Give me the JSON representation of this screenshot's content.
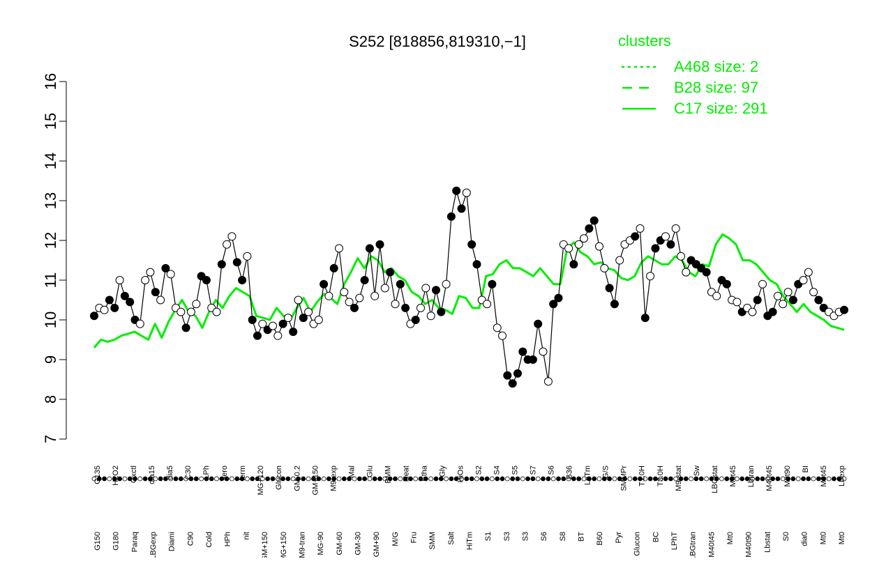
{
  "chart_data": {
    "type": "line",
    "title": "S252 [818856,819310,−1]",
    "xlabel": "",
    "ylabel": "",
    "ylim": [
      7,
      16
    ],
    "yticks": [
      7,
      8,
      9,
      10,
      11,
      12,
      13,
      14,
      15,
      16
    ],
    "grid": false,
    "legend": {
      "title": "clusters",
      "placement": "top-right",
      "entries": [
        {
          "label": "A468 size: 2",
          "style": "dotted"
        },
        {
          "label": "B28 size: 97",
          "style": "dashed"
        },
        {
          "label": "C17 size: 291",
          "style": "solid"
        }
      ]
    },
    "colors": {
      "cluster_line": "#00ee00",
      "axis": "#000000",
      "point_open": "#ffffff",
      "point_filled": "#000000"
    },
    "x_tick_labels_upper": [
      "G135",
      "H2O2",
      "Oxctl",
      "dia15",
      "dia5",
      "C30",
      "LPh",
      "aero",
      "ferm",
      "MG+120",
      "Glucon",
      "GM-0.2",
      "GM+150",
      "M9-exp",
      "Mal",
      "Glu",
      "BMM",
      "Heat",
      "Etha",
      "Gly",
      "HiOs",
      "S2",
      "S4",
      "S5",
      "S7",
      "S6",
      "B36",
      "LoTm",
      "G/S",
      "SMMPr",
      "T1.0H",
      "T3.0H",
      "M9-stat",
      "Sw",
      "LBGstat",
      "M0t45",
      "Lbtran",
      "M40t45",
      "M0t90",
      "BI",
      "M0t45",
      "Lbexp"
    ],
    "x_tick_labels_lower": [
      "G150",
      "G180",
      "Paraq",
      "LBGexp",
      "Diami",
      "C90",
      "Cold",
      "HPh",
      "nit",
      "GM+150",
      "MG+150",
      "M9-tran",
      "MG-90",
      "GM-60",
      "GM-30",
      "GM+90",
      "M/G",
      "Fru",
      "SMM",
      "Salt",
      "HiTm",
      "S1",
      "S3",
      "S3",
      "S6",
      "S8",
      "BT",
      "B60",
      "Pyr",
      "Glucon",
      "BC",
      "LPhT",
      "LBGtran",
      "M40t45",
      "Mt0",
      "M40t90",
      "Lbstat",
      "S0",
      "dia0",
      "Mt0",
      "Mt0"
    ],
    "series": [
      {
        "role": "cluster-mean",
        "values": [
          9.3,
          9.5,
          9.45,
          9.5,
          9.6,
          9.65,
          9.7,
          9.6,
          9.5,
          9.9,
          9.55,
          9.95,
          10.25,
          10.5,
          10.2,
          10.1,
          9.8,
          10.2,
          10.5,
          10.3,
          10.6,
          10.8,
          10.7,
          10.6,
          10.1,
          10.05,
          10.0,
          10.3,
          10.1,
          10.0,
          10.3,
          10.55,
          10.2,
          10.45,
          10.65,
          10.55,
          10.4,
          10.9,
          11.2,
          11.55,
          11.3,
          11.6,
          11.5,
          11.2,
          11.3,
          11.1,
          11.0,
          10.7,
          10.6,
          10.4,
          10.5,
          10.3,
          10.25,
          10.15,
          10.6,
          10.55,
          10.3,
          10.3,
          11.1,
          11.15,
          11.4,
          11.5,
          11.3,
          11.3,
          11.2,
          11.1,
          11.3,
          11.1,
          10.9,
          10.9,
          11.8,
          11.95,
          11.7,
          11.6,
          11.4,
          11.45,
          11.3,
          11.25,
          11.05,
          11.0,
          11.1,
          11.45,
          11.6,
          11.5,
          11.4,
          11.4,
          11.6,
          11.5,
          11.2,
          11.1,
          11.4,
          11.35,
          11.9,
          12.15,
          12.05,
          11.9,
          11.5,
          11.5,
          11.4,
          11.2,
          11.0,
          10.9,
          10.6,
          10.4,
          10.2,
          10.4,
          10.2,
          10.1,
          10.0,
          9.85,
          9.8,
          9.75
        ]
      },
      {
        "role": "gene-profile",
        "values": [
          10.1,
          10.3,
          10.25,
          10.5,
          10.3,
          11.0,
          10.6,
          10.45,
          10.0,
          9.9,
          11.0,
          11.2,
          10.7,
          10.5,
          11.3,
          11.15,
          10.3,
          10.2,
          9.8,
          10.2,
          10.4,
          11.1,
          11.0,
          10.3,
          10.2,
          11.4,
          11.9,
          12.1,
          11.45,
          11.0,
          11.6,
          10.0,
          9.6,
          9.9,
          9.75,
          9.85,
          9.6,
          9.9,
          10.05,
          9.7,
          10.5,
          10.05,
          10.2,
          9.9,
          10.0,
          10.9,
          10.6,
          11.3,
          11.8,
          10.7,
          10.45,
          10.3,
          10.55,
          11.0,
          11.8,
          10.6,
          11.9,
          10.8,
          11.2,
          10.4,
          10.9,
          10.3,
          9.9,
          10.0,
          10.3,
          10.8,
          10.1,
          10.75,
          10.2,
          10.9,
          12.6,
          13.25,
          12.8,
          13.2,
          11.9,
          11.4,
          10.5,
          10.4,
          10.9,
          9.8,
          9.6,
          8.6,
          8.4,
          8.65,
          9.2,
          9.0,
          9.0,
          9.9,
          9.2,
          8.45,
          10.4,
          10.55,
          11.9,
          11.8,
          11.4,
          11.9,
          12.05,
          12.3,
          12.5,
          11.85,
          11.3,
          10.8,
          10.4,
          11.5,
          11.9,
          12.0,
          12.1,
          12.3,
          10.05,
          11.1,
          11.8,
          12.0,
          12.1,
          11.9,
          12.3,
          11.6,
          11.2,
          11.5,
          11.4,
          11.3,
          11.2,
          10.7,
          10.6,
          11.0,
          10.9,
          10.5,
          10.45,
          10.2,
          10.3,
          10.2,
          10.5,
          10.9,
          10.1,
          10.2,
          10.6,
          10.4,
          10.7,
          10.5,
          10.9,
          11.0,
          11.2,
          10.7,
          10.5,
          10.3,
          10.2,
          10.1,
          10.2,
          10.25
        ]
      }
    ],
    "points": [
      {
        "x": 0,
        "y": 10.1,
        "filled": true
      },
      {
        "x": 1,
        "y": 10.3,
        "filled": false
      },
      {
        "x": 2,
        "y": 10.25,
        "filled": false
      },
      {
        "x": 3,
        "y": 10.5,
        "filled": true
      },
      {
        "x": 4,
        "y": 10.3,
        "filled": true
      },
      {
        "x": 5,
        "y": 11.0,
        "filled": false
      },
      {
        "x": 6,
        "y": 10.6,
        "filled": true
      },
      {
        "x": 7,
        "y": 10.45,
        "filled": true
      },
      {
        "x": 8,
        "y": 10.0,
        "filled": true
      },
      {
        "x": 9,
        "y": 9.9,
        "filled": false
      },
      {
        "x": 10,
        "y": 11.0,
        "filled": false
      },
      {
        "x": 11,
        "y": 11.2,
        "filled": false
      },
      {
        "x": 12,
        "y": 10.7,
        "filled": true
      },
      {
        "x": 13,
        "y": 10.5,
        "filled": false
      },
      {
        "x": 14,
        "y": 11.3,
        "filled": true
      },
      {
        "x": 15,
        "y": 11.15,
        "filled": false
      },
      {
        "x": 16,
        "y": 10.3,
        "filled": false
      },
      {
        "x": 17,
        "y": 10.2,
        "filled": false
      },
      {
        "x": 18,
        "y": 9.8,
        "filled": true
      },
      {
        "x": 19,
        "y": 10.2,
        "filled": false
      },
      {
        "x": 20,
        "y": 10.4,
        "filled": false
      },
      {
        "x": 21,
        "y": 11.1,
        "filled": true
      },
      {
        "x": 22,
        "y": 11.0,
        "filled": true
      },
      {
        "x": 23,
        "y": 10.3,
        "filled": false
      },
      {
        "x": 24,
        "y": 10.2,
        "filled": false
      },
      {
        "x": 25,
        "y": 11.4,
        "filled": true
      },
      {
        "x": 26,
        "y": 11.9,
        "filled": false
      },
      {
        "x": 27,
        "y": 12.1,
        "filled": false
      },
      {
        "x": 28,
        "y": 11.45,
        "filled": true
      },
      {
        "x": 29,
        "y": 11.0,
        "filled": true
      },
      {
        "x": 30,
        "y": 11.6,
        "filled": false
      },
      {
        "x": 31,
        "y": 10.0,
        "filled": true
      },
      {
        "x": 32,
        "y": 9.6,
        "filled": true
      },
      {
        "x": 33,
        "y": 9.9,
        "filled": false
      },
      {
        "x": 34,
        "y": 9.75,
        "filled": true
      },
      {
        "x": 35,
        "y": 9.85,
        "filled": false
      },
      {
        "x": 36,
        "y": 9.6,
        "filled": false
      },
      {
        "x": 37,
        "y": 9.9,
        "filled": true
      },
      {
        "x": 38,
        "y": 10.05,
        "filled": false
      },
      {
        "x": 39,
        "y": 9.7,
        "filled": true
      },
      {
        "x": 40,
        "y": 10.5,
        "filled": false
      },
      {
        "x": 41,
        "y": 10.05,
        "filled": true
      },
      {
        "x": 42,
        "y": 10.2,
        "filled": false
      },
      {
        "x": 43,
        "y": 9.9,
        "filled": false
      },
      {
        "x": 44,
        "y": 10.0,
        "filled": false
      },
      {
        "x": 45,
        "y": 10.9,
        "filled": true
      },
      {
        "x": 46,
        "y": 10.6,
        "filled": false
      },
      {
        "x": 47,
        "y": 11.3,
        "filled": true
      },
      {
        "x": 48,
        "y": 11.8,
        "filled": false
      },
      {
        "x": 49,
        "y": 10.7,
        "filled": false
      },
      {
        "x": 50,
        "y": 10.45,
        "filled": false
      },
      {
        "x": 51,
        "y": 10.3,
        "filled": true
      },
      {
        "x": 52,
        "y": 10.55,
        "filled": false
      },
      {
        "x": 53,
        "y": 11.0,
        "filled": true
      },
      {
        "x": 54,
        "y": 11.8,
        "filled": true
      },
      {
        "x": 55,
        "y": 10.6,
        "filled": false
      },
      {
        "x": 56,
        "y": 11.9,
        "filled": true
      },
      {
        "x": 57,
        "y": 10.8,
        "filled": false
      },
      {
        "x": 58,
        "y": 11.2,
        "filled": true
      },
      {
        "x": 59,
        "y": 10.4,
        "filled": false
      },
      {
        "x": 60,
        "y": 10.9,
        "filled": true
      },
      {
        "x": 61,
        "y": 10.3,
        "filled": true
      },
      {
        "x": 62,
        "y": 9.9,
        "filled": false
      },
      {
        "x": 63,
        "y": 10.0,
        "filled": true
      },
      {
        "x": 64,
        "y": 10.3,
        "filled": false
      },
      {
        "x": 65,
        "y": 10.8,
        "filled": false
      },
      {
        "x": 66,
        "y": 10.1,
        "filled": false
      },
      {
        "x": 67,
        "y": 10.75,
        "filled": true
      },
      {
        "x": 68,
        "y": 10.2,
        "filled": true
      },
      {
        "x": 69,
        "y": 10.9,
        "filled": false
      },
      {
        "x": 70,
        "y": 12.6,
        "filled": true
      },
      {
        "x": 71,
        "y": 13.25,
        "filled": true
      },
      {
        "x": 72,
        "y": 12.8,
        "filled": true
      },
      {
        "x": 73,
        "y": 13.2,
        "filled": false
      },
      {
        "x": 74,
        "y": 11.9,
        "filled": true
      },
      {
        "x": 75,
        "y": 11.4,
        "filled": true
      },
      {
        "x": 76,
        "y": 10.5,
        "filled": false
      },
      {
        "x": 77,
        "y": 10.4,
        "filled": false
      },
      {
        "x": 78,
        "y": 10.9,
        "filled": true
      },
      {
        "x": 79,
        "y": 9.8,
        "filled": false
      },
      {
        "x": 80,
        "y": 9.6,
        "filled": false
      },
      {
        "x": 81,
        "y": 8.6,
        "filled": true
      },
      {
        "x": 82,
        "y": 8.4,
        "filled": true
      },
      {
        "x": 83,
        "y": 8.65,
        "filled": true
      },
      {
        "x": 84,
        "y": 9.2,
        "filled": true
      },
      {
        "x": 85,
        "y": 9.0,
        "filled": true
      },
      {
        "x": 86,
        "y": 9.0,
        "filled": true
      },
      {
        "x": 87,
        "y": 9.9,
        "filled": true
      },
      {
        "x": 88,
        "y": 9.2,
        "filled": false
      },
      {
        "x": 89,
        "y": 8.45,
        "filled": false
      },
      {
        "x": 90,
        "y": 10.4,
        "filled": true
      },
      {
        "x": 91,
        "y": 10.55,
        "filled": true
      },
      {
        "x": 92,
        "y": 11.9,
        "filled": false
      },
      {
        "x": 93,
        "y": 11.8,
        "filled": false
      },
      {
        "x": 94,
        "y": 11.4,
        "filled": true
      },
      {
        "x": 95,
        "y": 11.9,
        "filled": false
      },
      {
        "x": 96,
        "y": 12.05,
        "filled": false
      },
      {
        "x": 97,
        "y": 12.3,
        "filled": true
      },
      {
        "x": 98,
        "y": 12.5,
        "filled": true
      },
      {
        "x": 99,
        "y": 11.85,
        "filled": false
      },
      {
        "x": 100,
        "y": 11.3,
        "filled": false
      },
      {
        "x": 101,
        "y": 10.8,
        "filled": true
      },
      {
        "x": 102,
        "y": 10.4,
        "filled": true
      },
      {
        "x": 103,
        "y": 11.5,
        "filled": false
      },
      {
        "x": 104,
        "y": 11.9,
        "filled": false
      },
      {
        "x": 105,
        "y": 12.0,
        "filled": false
      },
      {
        "x": 106,
        "y": 12.1,
        "filled": true
      },
      {
        "x": 107,
        "y": 12.3,
        "filled": false
      },
      {
        "x": 108,
        "y": 10.05,
        "filled": true
      },
      {
        "x": 109,
        "y": 11.1,
        "filled": false
      },
      {
        "x": 110,
        "y": 11.8,
        "filled": true
      },
      {
        "x": 111,
        "y": 12.0,
        "filled": true
      },
      {
        "x": 112,
        "y": 12.1,
        "filled": false
      },
      {
        "x": 113,
        "y": 11.9,
        "filled": true
      },
      {
        "x": 114,
        "y": 12.3,
        "filled": false
      },
      {
        "x": 115,
        "y": 11.6,
        "filled": false
      },
      {
        "x": 116,
        "y": 11.2,
        "filled": false
      },
      {
        "x": 117,
        "y": 11.5,
        "filled": true
      },
      {
        "x": 118,
        "y": 11.4,
        "filled": true
      },
      {
        "x": 119,
        "y": 11.3,
        "filled": true
      },
      {
        "x": 120,
        "y": 11.2,
        "filled": true
      },
      {
        "x": 121,
        "y": 10.7,
        "filled": false
      },
      {
        "x": 122,
        "y": 10.6,
        "filled": false
      },
      {
        "x": 123,
        "y": 11.0,
        "filled": true
      },
      {
        "x": 124,
        "y": 10.9,
        "filled": true
      },
      {
        "x": 125,
        "y": 10.5,
        "filled": false
      },
      {
        "x": 126,
        "y": 10.45,
        "filled": false
      },
      {
        "x": 127,
        "y": 10.2,
        "filled": true
      },
      {
        "x": 128,
        "y": 10.3,
        "filled": false
      },
      {
        "x": 129,
        "y": 10.2,
        "filled": false
      },
      {
        "x": 130,
        "y": 10.5,
        "filled": true
      },
      {
        "x": 131,
        "y": 10.9,
        "filled": false
      },
      {
        "x": 132,
        "y": 10.1,
        "filled": true
      },
      {
        "x": 133,
        "y": 10.2,
        "filled": true
      },
      {
        "x": 134,
        "y": 10.6,
        "filled": false
      },
      {
        "x": 135,
        "y": 10.4,
        "filled": false
      },
      {
        "x": 136,
        "y": 10.7,
        "filled": false
      },
      {
        "x": 137,
        "y": 10.5,
        "filled": true
      },
      {
        "x": 138,
        "y": 10.9,
        "filled": true
      },
      {
        "x": 139,
        "y": 11.0,
        "filled": false
      },
      {
        "x": 140,
        "y": 11.2,
        "filled": false
      },
      {
        "x": 141,
        "y": 10.7,
        "filled": false
      },
      {
        "x": 142,
        "y": 10.5,
        "filled": true
      },
      {
        "x": 143,
        "y": 10.3,
        "filled": true
      },
      {
        "x": 144,
        "y": 10.2,
        "filled": false
      },
      {
        "x": 145,
        "y": 10.1,
        "filled": false
      },
      {
        "x": 146,
        "y": 10.2,
        "filled": false
      },
      {
        "x": 147,
        "y": 10.25,
        "filled": true
      }
    ]
  }
}
